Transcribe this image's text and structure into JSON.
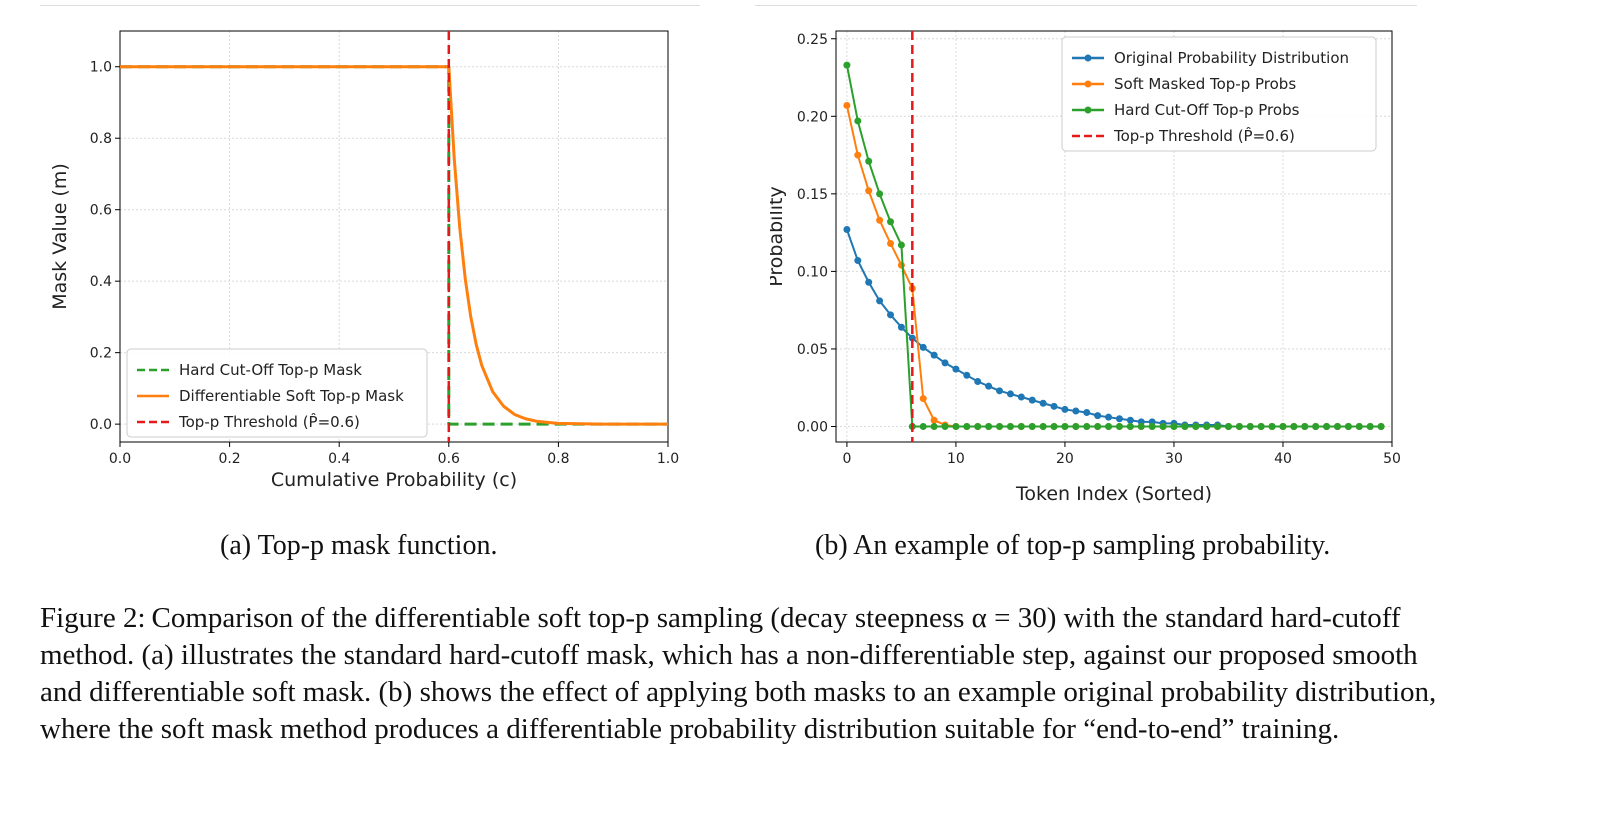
{
  "caption_a": "(a) Top-p mask function.",
  "caption_b": "(b) An example of top-p sampling probability.",
  "figure_label": "Figure 2:",
  "figure_caption": "Comparison of the differentiable soft top-p sampling (decay steepness α = 30) with the standard hard-cutoff method. (a) illustrates the standard hard-cutoff mask, which has a non-differentiable step, against our proposed smooth and differentiable soft mask. (b) shows the effect of applying both masks to an example original probability distribution, where the soft mask method produces a differentiable probability distribution suitable for “end-to-end” training.",
  "colors": {
    "blue": "#1f77b4",
    "orange": "#ff7f0e",
    "green": "#2ca02c",
    "red": "#e31a1c"
  },
  "chart_data": [
    {
      "type": "line",
      "title": "",
      "xlabel": "Cumulative Probability (c)",
      "ylabel": "Mask Value (m)",
      "xlim": [
        0.0,
        1.0
      ],
      "ylim": [
        -0.05,
        1.1
      ],
      "xticks": [
        0.0,
        0.2,
        0.4,
        0.6,
        0.8,
        1.0
      ],
      "xtick_labels": [
        "0.0",
        "0.2",
        "0.4",
        "0.6",
        "0.8",
        "1.0"
      ],
      "yticks": [
        0.0,
        0.2,
        0.4,
        0.6,
        0.8,
        1.0
      ],
      "ytick_labels": [
        "0.0",
        "0.2",
        "0.4",
        "0.6",
        "0.8",
        "1.0"
      ],
      "grid": true,
      "legend_position": "bottom-left",
      "threshold": 0.6,
      "alpha": 30,
      "series": [
        {
          "name": "Hard Cut-Off Top-p Mask",
          "style": "dashed",
          "color": "green",
          "x": [
            0.0,
            0.6,
            0.6,
            1.0
          ],
          "y": [
            1.0,
            1.0,
            0.0,
            0.0
          ]
        },
        {
          "name": "Differentiable Soft Top-p Mask",
          "style": "solid",
          "color": "orange",
          "x": [
            0.0,
            0.6,
            0.61,
            0.62,
            0.63,
            0.64,
            0.65,
            0.66,
            0.68,
            0.7,
            0.72,
            0.74,
            0.76,
            0.78,
            0.8,
            0.84,
            0.88,
            0.92,
            0.96,
            1.0
          ],
          "y": [
            1.0,
            1.0,
            0.741,
            0.549,
            0.407,
            0.301,
            0.223,
            0.165,
            0.091,
            0.05,
            0.027,
            0.015,
            0.008,
            0.005,
            0.002,
            0.001,
            0.0,
            0.0,
            0.0,
            0.0
          ]
        },
        {
          "name": "Top-p Threshold (P̂=0.6)",
          "style": "dashed",
          "color": "red",
          "vertical_x": 0.6
        }
      ],
      "legend": [
        "Hard Cut-Off Top-p Mask",
        "Differentiable Soft Top-p Mask",
        "Top-p Threshold (P̂=0.6)"
      ]
    },
    {
      "type": "line",
      "title": "",
      "xlabel": "Token Index (Sorted)",
      "ylabel": "Probability",
      "xlim": [
        -1,
        50
      ],
      "ylim": [
        -0.01,
        0.255
      ],
      "xticks": [
        0,
        10,
        20,
        30,
        40,
        50
      ],
      "xtick_labels": [
        "0",
        "10",
        "20",
        "30",
        "40",
        "50"
      ],
      "yticks": [
        0.0,
        0.05,
        0.1,
        0.15,
        0.2,
        0.25
      ],
      "ytick_labels": [
        "0.00",
        "0.05",
        "0.10",
        "0.15",
        "0.20",
        "0.25"
      ],
      "grid": true,
      "legend_position": "top-right",
      "threshold_index": 6,
      "series": [
        {
          "name": "Original Probability Distribution",
          "color": "blue",
          "marker": "circle",
          "x": [
            0,
            1,
            2,
            3,
            4,
            5,
            6,
            7,
            8,
            9,
            10,
            11,
            12,
            13,
            14,
            15,
            16,
            17,
            18,
            19,
            20,
            21,
            22,
            23,
            24,
            25,
            26,
            27,
            28,
            29,
            30,
            31,
            32,
            33,
            34,
            35,
            36,
            37,
            38,
            39,
            40,
            41,
            42,
            43,
            44,
            45,
            46,
            47,
            48,
            49
          ],
          "y": [
            0.127,
            0.107,
            0.093,
            0.081,
            0.072,
            0.064,
            0.057,
            0.051,
            0.046,
            0.041,
            0.037,
            0.033,
            0.029,
            0.026,
            0.023,
            0.021,
            0.019,
            0.017,
            0.015,
            0.013,
            0.011,
            0.01,
            0.009,
            0.007,
            0.006,
            0.005,
            0.004,
            0.003,
            0.003,
            0.002,
            0.002,
            0.001,
            0.001,
            0.001,
            0.001,
            0.0,
            0.0,
            0.0,
            0.0,
            0.0,
            0.0,
            0.0,
            0.0,
            0.0,
            0.0,
            0.0,
            0.0,
            0.0,
            0.0,
            0.0
          ]
        },
        {
          "name": "Soft Masked Top-p Probs",
          "color": "orange",
          "marker": "circle",
          "x": [
            0,
            1,
            2,
            3,
            4,
            5,
            6,
            7,
            8,
            9,
            10,
            11,
            12,
            13,
            14,
            15,
            16,
            17,
            18,
            19,
            20,
            21,
            22,
            23,
            24,
            25,
            26,
            27,
            28,
            29,
            30,
            31,
            32,
            33,
            34,
            35,
            36,
            37,
            38,
            39,
            40,
            41,
            42,
            43,
            44,
            45,
            46,
            47,
            48,
            49
          ],
          "y": [
            0.207,
            0.175,
            0.152,
            0.133,
            0.118,
            0.104,
            0.089,
            0.018,
            0.004,
            0.001,
            0.0,
            0.0,
            0.0,
            0.0,
            0.0,
            0.0,
            0.0,
            0.0,
            0.0,
            0.0,
            0.0,
            0.0,
            0.0,
            0.0,
            0.0,
            0.0,
            0.0,
            0.0,
            0.0,
            0.0,
            0.0,
            0.0,
            0.0,
            0.0,
            0.0,
            0.0,
            0.0,
            0.0,
            0.0,
            0.0,
            0.0,
            0.0,
            0.0,
            0.0,
            0.0,
            0.0,
            0.0,
            0.0,
            0.0,
            0.0
          ]
        },
        {
          "name": "Hard Cut-Off Top-p Probs",
          "color": "green",
          "marker": "circle",
          "x": [
            0,
            1,
            2,
            3,
            4,
            5,
            6,
            7,
            8,
            9,
            10,
            11,
            12,
            13,
            14,
            15,
            16,
            17,
            18,
            19,
            20,
            21,
            22,
            23,
            24,
            25,
            26,
            27,
            28,
            29,
            30,
            31,
            32,
            33,
            34,
            35,
            36,
            37,
            38,
            39,
            40,
            41,
            42,
            43,
            44,
            45,
            46,
            47,
            48,
            49
          ],
          "y": [
            0.233,
            0.197,
            0.171,
            0.15,
            0.132,
            0.117,
            0.0,
            0.0,
            0.0,
            0.0,
            0.0,
            0.0,
            0.0,
            0.0,
            0.0,
            0.0,
            0.0,
            0.0,
            0.0,
            0.0,
            0.0,
            0.0,
            0.0,
            0.0,
            0.0,
            0.0,
            0.0,
            0.0,
            0.0,
            0.0,
            0.0,
            0.0,
            0.0,
            0.0,
            0.0,
            0.0,
            0.0,
            0.0,
            0.0,
            0.0,
            0.0,
            0.0,
            0.0,
            0.0,
            0.0,
            0.0,
            0.0,
            0.0,
            0.0,
            0.0
          ]
        },
        {
          "name": "Top-p Threshold (P̂=0.6)",
          "style": "dashed",
          "color": "red",
          "vertical_x": 6
        }
      ],
      "legend": [
        "Original Probability Distribution",
        "Soft Masked Top-p Probs",
        "Hard Cut-Off Top-p Probs",
        "Top-p Threshold (P̂=0.6)"
      ]
    }
  ]
}
